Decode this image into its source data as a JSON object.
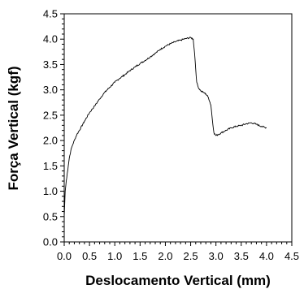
{
  "chart_data": {
    "type": "line",
    "title": "",
    "xlabel": "Deslocamento Vertical (mm)",
    "ylabel": "Força Vertical (kgf)",
    "xlim": [
      0,
      4.5
    ],
    "ylim": [
      0,
      4.5
    ],
    "xticks": [
      "0.0",
      "0.5",
      "1.0",
      "1.5",
      "2.0",
      "2.5",
      "3.0",
      "3.5",
      "4.0",
      "4.5"
    ],
    "yticks": [
      "0.0",
      "0.5",
      "1.0",
      "1.5",
      "2.0",
      "2.5",
      "3.0",
      "3.5",
      "4.0",
      "4.5"
    ],
    "grid": false,
    "line_color": "#000000",
    "series": [
      {
        "x": [
          0.0,
          0.02,
          0.04,
          0.06,
          0.08,
          0.1,
          0.13,
          0.16,
          0.2,
          0.25,
          0.3,
          0.4,
          0.5,
          0.6,
          0.7,
          0.8,
          0.9,
          1.0,
          1.1,
          1.2,
          1.3,
          1.4,
          1.5,
          1.6,
          1.7,
          1.8,
          1.9,
          2.0,
          2.1,
          2.2,
          2.3,
          2.4,
          2.5,
          2.55,
          2.58,
          2.6,
          2.62,
          2.65,
          2.7,
          2.75,
          2.8,
          2.85,
          2.9,
          2.93,
          2.96,
          3.0,
          3.05,
          3.1,
          3.2,
          3.3,
          3.4,
          3.5,
          3.6,
          3.7,
          3.8,
          3.9,
          4.0
        ],
        "y": [
          0.5,
          1.0,
          1.2,
          1.35,
          1.5,
          1.65,
          1.8,
          1.9,
          2.0,
          2.12,
          2.2,
          2.38,
          2.55,
          2.68,
          2.82,
          2.95,
          3.05,
          3.15,
          3.23,
          3.3,
          3.38,
          3.45,
          3.52,
          3.58,
          3.65,
          3.72,
          3.8,
          3.86,
          3.91,
          3.95,
          3.98,
          4.01,
          4.03,
          4.0,
          3.7,
          3.4,
          3.15,
          3.05,
          2.98,
          2.95,
          2.92,
          2.85,
          2.7,
          2.4,
          2.15,
          2.1,
          2.12,
          2.15,
          2.2,
          2.25,
          2.28,
          2.3,
          2.33,
          2.35,
          2.32,
          2.28,
          2.25
        ]
      }
    ]
  }
}
